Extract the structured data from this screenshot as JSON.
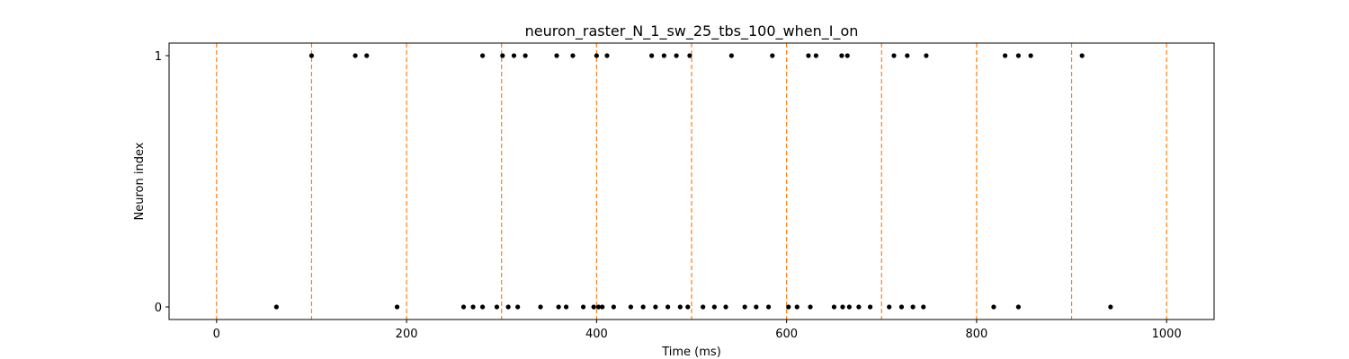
{
  "chart_data": {
    "type": "scatter",
    "title": "neuron_raster_N_1_sw_25_tbs_100_when_I_on",
    "xlabel": "Time (ms)",
    "ylabel": "Neuron index",
    "xlim": [
      -50,
      1050
    ],
    "ylim": [
      -0.05,
      1.05
    ],
    "x_ticks": [
      0,
      200,
      400,
      600,
      800,
      1000
    ],
    "y_ticks": [
      0,
      1
    ],
    "grid": false,
    "marker_color": "#000000",
    "vline_color": "#ff7f0e",
    "vlines": [
      0,
      100,
      200,
      300,
      400,
      500,
      600,
      700,
      800,
      900,
      1000
    ],
    "series": [
      {
        "neuron": 1,
        "spike_times": [
          100,
          146,
          158,
          280,
          301,
          313,
          325,
          358,
          375,
          400,
          411,
          458,
          471,
          484,
          498,
          542,
          585,
          623,
          631,
          658,
          664,
          713,
          727,
          747,
          830,
          844,
          857,
          911
        ]
      },
      {
        "neuron": 0,
        "spike_times": [
          63,
          190,
          260,
          270,
          280,
          295,
          307,
          317,
          341,
          360,
          368,
          386,
          397,
          402,
          406,
          418,
          436,
          449,
          462,
          475,
          488,
          496,
          512,
          524,
          536,
          556,
          568,
          581,
          602,
          611,
          625,
          650,
          659,
          666,
          676,
          688,
          708,
          721,
          733,
          744,
          818,
          844,
          941
        ]
      }
    ]
  }
}
